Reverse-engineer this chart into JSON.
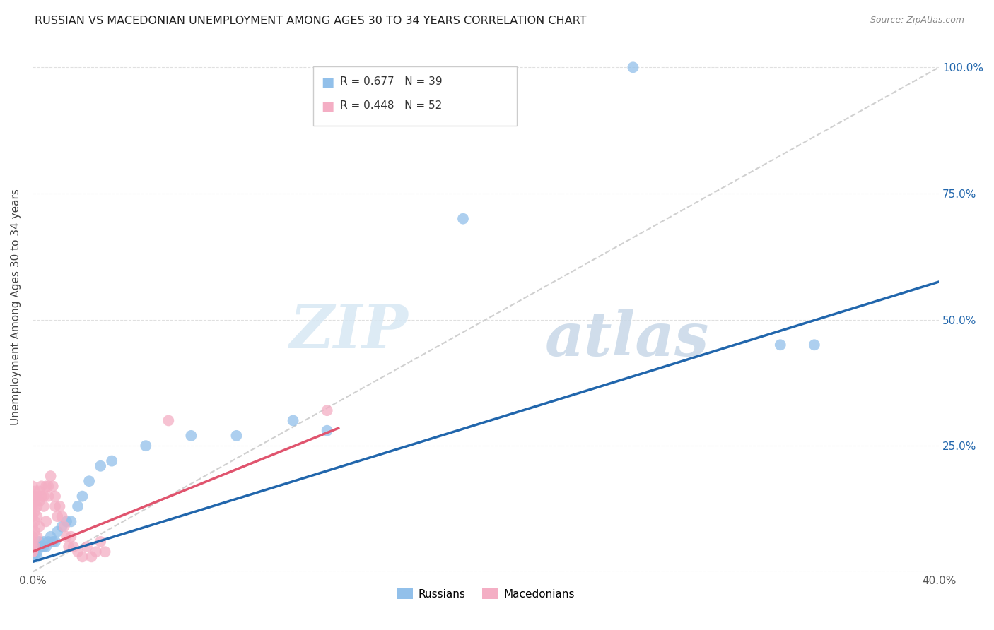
{
  "title": "RUSSIAN VS MACEDONIAN UNEMPLOYMENT AMONG AGES 30 TO 34 YEARS CORRELATION CHART",
  "source": "Source: ZipAtlas.com",
  "ylabel": "Unemployment Among Ages 30 to 34 years",
  "xlim": [
    0.0,
    0.4
  ],
  "ylim": [
    0.0,
    1.05
  ],
  "xtick_vals": [
    0.0,
    0.1,
    0.2,
    0.3,
    0.4
  ],
  "xtick_labels": [
    "0.0%",
    "",
    "",
    "",
    "40.0%"
  ],
  "ytick_vals": [
    0.0,
    0.25,
    0.5,
    0.75,
    1.0
  ],
  "ytick_labels": [
    "",
    "25.0%",
    "50.0%",
    "75.0%",
    "100.0%"
  ],
  "russian_color": "#92c0ea",
  "macedonian_color": "#f4aec4",
  "russian_R": 0.677,
  "russian_N": 39,
  "macedonian_R": 0.448,
  "macedonian_N": 52,
  "russian_line_color": "#2166ac",
  "macedonian_line_color": "#e0546e",
  "reference_line_color": "#d0d0d0",
  "watermark_zip": "ZIP",
  "watermark_atlas": "atlas",
  "russians_x": [
    0.0,
    0.0,
    0.0,
    0.0,
    0.0,
    0.001,
    0.001,
    0.001,
    0.002,
    0.002,
    0.002,
    0.003,
    0.003,
    0.004,
    0.005,
    0.005,
    0.006,
    0.007,
    0.008,
    0.009,
    0.01,
    0.011,
    0.013,
    0.015,
    0.017,
    0.02,
    0.022,
    0.025,
    0.03,
    0.035,
    0.05,
    0.07,
    0.09,
    0.115,
    0.13,
    0.19,
    0.265,
    0.33,
    0.345
  ],
  "russians_y": [
    0.03,
    0.04,
    0.05,
    0.04,
    0.03,
    0.04,
    0.03,
    0.05,
    0.04,
    0.05,
    0.03,
    0.05,
    0.06,
    0.05,
    0.05,
    0.06,
    0.05,
    0.06,
    0.07,
    0.06,
    0.06,
    0.08,
    0.09,
    0.1,
    0.1,
    0.13,
    0.15,
    0.18,
    0.21,
    0.22,
    0.25,
    0.27,
    0.27,
    0.3,
    0.28,
    0.7,
    1.0,
    0.45,
    0.45
  ],
  "macedonians_x": [
    0.0,
    0.0,
    0.0,
    0.0,
    0.0,
    0.0,
    0.0,
    0.0,
    0.0,
    0.0,
    0.001,
    0.001,
    0.001,
    0.001,
    0.001,
    0.001,
    0.002,
    0.002,
    0.002,
    0.002,
    0.003,
    0.003,
    0.003,
    0.004,
    0.004,
    0.005,
    0.005,
    0.006,
    0.006,
    0.007,
    0.007,
    0.008,
    0.009,
    0.01,
    0.01,
    0.011,
    0.012,
    0.013,
    0.014,
    0.015,
    0.016,
    0.017,
    0.018,
    0.02,
    0.022,
    0.024,
    0.026,
    0.028,
    0.03,
    0.032,
    0.06,
    0.13
  ],
  "macedonians_y": [
    0.04,
    0.05,
    0.06,
    0.07,
    0.09,
    0.11,
    0.13,
    0.15,
    0.17,
    0.04,
    0.08,
    0.1,
    0.12,
    0.14,
    0.16,
    0.05,
    0.11,
    0.13,
    0.15,
    0.07,
    0.14,
    0.16,
    0.09,
    0.15,
    0.17,
    0.13,
    0.15,
    0.17,
    0.1,
    0.15,
    0.17,
    0.19,
    0.17,
    0.15,
    0.13,
    0.11,
    0.13,
    0.11,
    0.09,
    0.07,
    0.05,
    0.07,
    0.05,
    0.04,
    0.03,
    0.05,
    0.03,
    0.04,
    0.06,
    0.04,
    0.3,
    0.32
  ],
  "russian_line_x": [
    0.0,
    0.4
  ],
  "russian_line_y": [
    0.02,
    0.575
  ],
  "macedonian_line_x": [
    0.0,
    0.135
  ],
  "macedonian_line_y": [
    0.04,
    0.285
  ]
}
